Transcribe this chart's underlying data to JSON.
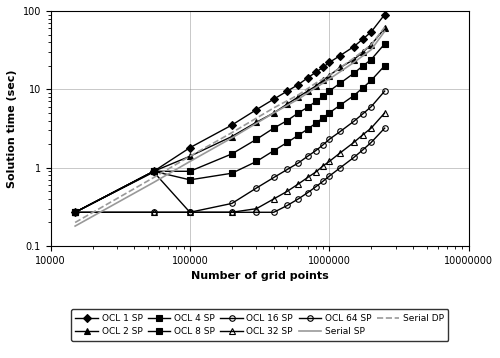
{
  "xlabel": "Number of grid points",
  "ylabel": "Solution time (sec)",
  "xlim": [
    10000,
    10000000
  ],
  "ylim": [
    0.1,
    100
  ],
  "series": {
    "OCL 1 SP": {
      "x": [
        15000,
        55000,
        100000,
        200000,
        300000,
        400000,
        500000,
        600000,
        700000,
        800000,
        900000,
        1000000,
        1200000,
        1500000,
        1750000,
        2000000,
        2500000
      ],
      "y": [
        0.27,
        0.9,
        1.8,
        3.5,
        5.5,
        7.5,
        9.5,
        11.5,
        14,
        16.5,
        19,
        22,
        27,
        35,
        44,
        54,
        90
      ],
      "marker": "D",
      "color": "black",
      "linestyle": "-",
      "markersize": 4,
      "fillstyle": "full"
    },
    "OCL 2 SP": {
      "x": [
        15000,
        55000,
        100000,
        200000,
        300000,
        400000,
        500000,
        600000,
        700000,
        800000,
        900000,
        1000000,
        1200000,
        1500000,
        1750000,
        2000000,
        2500000
      ],
      "y": [
        0.27,
        0.9,
        1.4,
        2.5,
        3.8,
        5.0,
        6.5,
        8.0,
        9.5,
        11,
        13,
        15,
        19,
        24,
        30,
        37,
        60
      ],
      "marker": "^",
      "color": "black",
      "linestyle": "-",
      "markersize": 4,
      "fillstyle": "full"
    },
    "OCL 4 SP": {
      "x": [
        15000,
        55000,
        100000,
        200000,
        300000,
        400000,
        500000,
        600000,
        700000,
        800000,
        900000,
        1000000,
        1200000,
        1500000,
        1750000,
        2000000,
        2500000
      ],
      "y": [
        0.27,
        0.9,
        0.9,
        1.5,
        2.3,
        3.2,
        4.0,
        5.0,
        5.9,
        7.0,
        8.1,
        9.5,
        12,
        16,
        20,
        24,
        38
      ],
      "marker": "s",
      "color": "black",
      "linestyle": "-",
      "markersize": 4,
      "fillstyle": "full"
    },
    "OCL 8 SP": {
      "x": [
        15000,
        55000,
        100000,
        200000,
        300000,
        400000,
        500000,
        600000,
        700000,
        800000,
        900000,
        1000000,
        1200000,
        1500000,
        1750000,
        2000000,
        2500000
      ],
      "y": [
        0.27,
        0.9,
        0.7,
        0.85,
        1.2,
        1.65,
        2.1,
        2.6,
        3.1,
        3.7,
        4.3,
        5.0,
        6.3,
        8.3,
        10.5,
        13,
        20
      ],
      "marker": "s",
      "color": "black",
      "linestyle": "-",
      "markersize": 4,
      "fillstyle": "full"
    },
    "OCL 16 SP": {
      "x": [
        15000,
        55000,
        100000,
        200000,
        300000,
        400000,
        500000,
        600000,
        700000,
        800000,
        900000,
        1000000,
        1200000,
        1500000,
        1750000,
        2000000,
        2500000
      ],
      "y": [
        0.27,
        0.88,
        0.27,
        0.35,
        0.55,
        0.75,
        0.95,
        1.15,
        1.4,
        1.65,
        1.95,
        2.3,
        2.9,
        3.9,
        4.9,
        6.0,
        9.5
      ],
      "marker": "o",
      "color": "black",
      "linestyle": "-",
      "markersize": 4,
      "fillstyle": "none"
    },
    "OCL 32 SP": {
      "x": [
        15000,
        55000,
        100000,
        200000,
        300000,
        400000,
        500000,
        600000,
        700000,
        800000,
        900000,
        1000000,
        1200000,
        1500000,
        1750000,
        2000000,
        2500000
      ],
      "y": [
        0.27,
        0.27,
        0.27,
        0.27,
        0.3,
        0.4,
        0.5,
        0.62,
        0.75,
        0.88,
        1.05,
        1.2,
        1.55,
        2.1,
        2.65,
        3.2,
        5.0
      ],
      "marker": "^",
      "color": "black",
      "linestyle": "-",
      "markersize": 4,
      "fillstyle": "none"
    },
    "OCL 64 SP": {
      "x": [
        15000,
        55000,
        100000,
        200000,
        300000,
        400000,
        500000,
        600000,
        700000,
        800000,
        900000,
        1000000,
        1200000,
        1500000,
        1750000,
        2000000,
        2500000
      ],
      "y": [
        0.27,
        0.27,
        0.27,
        0.27,
        0.27,
        0.27,
        0.33,
        0.4,
        0.48,
        0.57,
        0.67,
        0.78,
        1.0,
        1.35,
        1.7,
        2.1,
        3.2
      ],
      "marker": "o",
      "color": "black",
      "linestyle": "-",
      "markersize": 4,
      "fillstyle": "none"
    },
    "Serial SP": {
      "x": [
        15000,
        55000,
        100000,
        200000,
        400000,
        600000,
        800000,
        1000000,
        1500000,
        2000000,
        2500000
      ],
      "y": [
        0.18,
        0.65,
        1.2,
        2.4,
        5.0,
        7.5,
        10.5,
        13.5,
        22,
        32,
        55
      ],
      "marker": "none",
      "color": "#999999",
      "linestyle": "-",
      "markersize": 0,
      "fillstyle": "none"
    },
    "Serial DP": {
      "x": [
        15000,
        55000,
        100000,
        200000,
        400000,
        600000,
        800000,
        1000000,
        1500000,
        2000000,
        2500000
      ],
      "y": [
        0.2,
        0.75,
        1.4,
        2.8,
        5.8,
        8.5,
        12,
        15,
        25,
        37,
        62
      ],
      "marker": "none",
      "color": "#999999",
      "linestyle": "--",
      "markersize": 0,
      "fillstyle": "none"
    }
  },
  "legend_order": [
    "OCL 1 SP",
    "OCL 2 SP",
    "OCL 4 SP",
    "OCL 8 SP",
    "OCL 16 SP",
    "OCL 32 SP",
    "OCL 64 SP",
    "Serial SP",
    "Serial DP"
  ]
}
